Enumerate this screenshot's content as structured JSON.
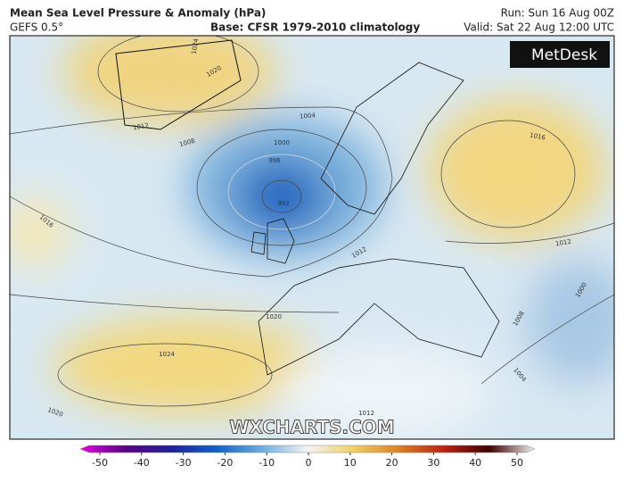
{
  "header": {
    "title": "Mean Sea Level Pressure & Anomaly (hPa)",
    "model": "GEFS 0.5°",
    "base": "Base: CFSR 1979-2010 climatology",
    "run": "Run: Sun 16 Aug 00Z",
    "valid": "Valid: Sat 22 Aug 12:00 UTC"
  },
  "logo": "MetDesk",
  "watermark": "WXCHARTS.COM",
  "contour_labels": [
    "1024",
    "1020",
    "1012",
    "1008",
    "1004",
    "1000",
    "996",
    "992",
    "1016",
    "1012",
    "1016",
    "1012",
    "1008",
    "1004",
    "1000",
    "1020",
    "1024",
    "1020",
    "1012"
  ],
  "colorbar": {
    "lim": [
      -50,
      50
    ],
    "ticks": [
      -50,
      -40,
      -30,
      -20,
      -10,
      0,
      10,
      20,
      30,
      40,
      50
    ],
    "colors": [
      "#e600e6",
      "#5a008c",
      "#1e1e9e",
      "#1060d0",
      "#6aaee0",
      "#f4f4f4",
      "#f0d060",
      "#e08020",
      "#c02010",
      "#400000",
      "#f0f0f0"
    ]
  }
}
